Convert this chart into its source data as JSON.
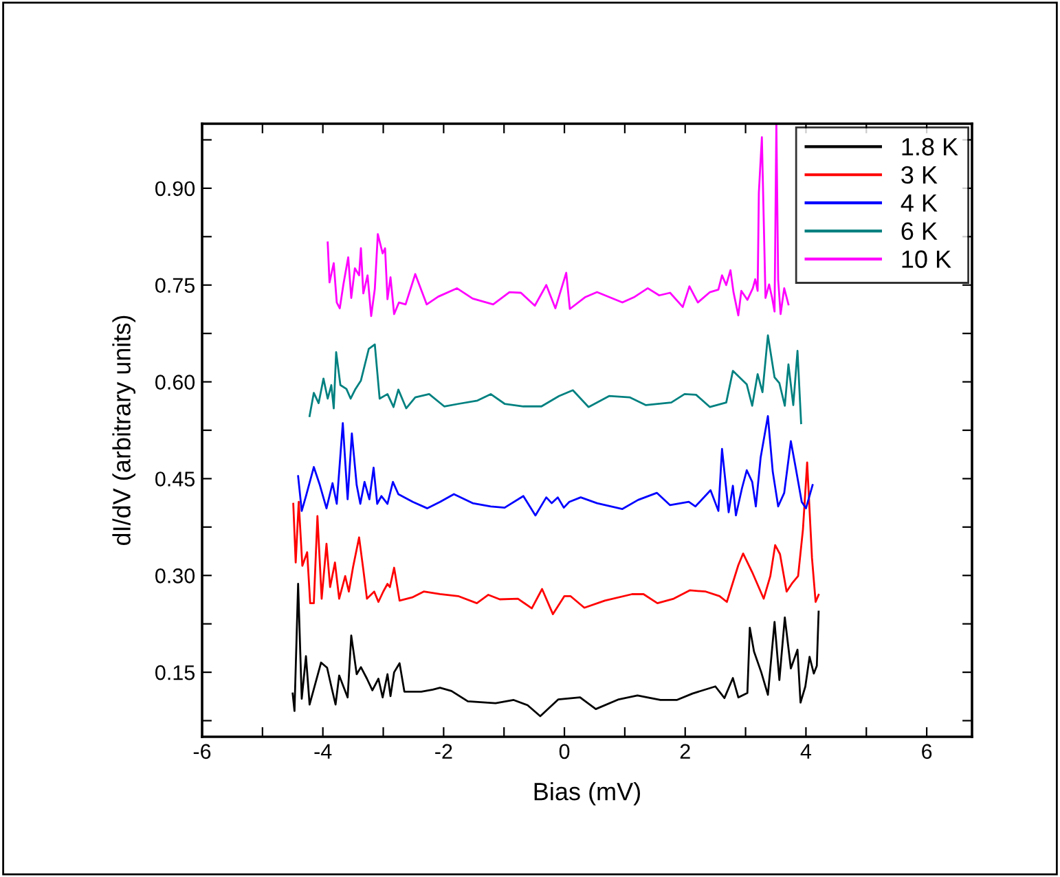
{
  "chart_data": {
    "type": "line",
    "xlabel": "Bias (mV)",
    "ylabel": "dI/dV (arbitrary units)",
    "xlim": [
      -6,
      6.75
    ],
    "ylim": [
      0.05,
      1.0
    ],
    "xticks": [
      -6,
      {
        "value": -5,
        "label": null
      },
      -4,
      {
        "value": -3,
        "label": null
      },
      -2,
      {
        "value": -1,
        "label": null
      },
      0,
      {
        "value": 1,
        "label": null
      },
      2,
      {
        "value": 3,
        "label": null
      },
      4,
      {
        "value": 5,
        "label": null
      },
      6
    ],
    "yticks": [
      {
        "value": 0.075,
        "label": null
      },
      {
        "value": 0.15,
        "label": "0.15"
      },
      {
        "value": 0.225,
        "label": null
      },
      {
        "value": 0.3,
        "label": "0.30"
      },
      {
        "value": 0.375,
        "label": null
      },
      {
        "value": 0.45,
        "label": "0.45"
      },
      {
        "value": 0.525,
        "label": null
      },
      {
        "value": 0.6,
        "label": "0.60"
      },
      {
        "value": 0.675,
        "label": null
      },
      {
        "value": 0.75,
        "label": "0.75"
      },
      {
        "value": 0.825,
        "label": null
      },
      {
        "value": 0.9,
        "label": "0.90"
      },
      {
        "value": 0.975,
        "label": null
      }
    ],
    "grid": false,
    "legend": "top right",
    "marker": "none",
    "line_style": "solid",
    "series": [
      {
        "name": "1.8 K",
        "color": "#000000",
        "x": [
          -4.5,
          -4.47,
          -4.41,
          -4.35,
          -4.28,
          -4.22,
          -4.15,
          -4.03,
          -3.93,
          -3.86,
          -3.79,
          -3.73,
          -3.59,
          -3.53,
          -3.44,
          -3.37,
          -3.27,
          -3.18,
          -3.08,
          -3.01,
          -2.93,
          -2.88,
          -2.82,
          -2.73,
          -2.65,
          -2.37,
          -2.18,
          -2.06,
          -1.87,
          -1.6,
          -1.14,
          -0.84,
          -0.61,
          -0.4,
          -0.1,
          0.26,
          0.52,
          0.9,
          1.21,
          1.59,
          1.86,
          2.12,
          2.5,
          2.65,
          2.79,
          2.88,
          3.03,
          3.07,
          3.14,
          3.26,
          3.37,
          3.48,
          3.56,
          3.65,
          3.75,
          3.86,
          3.91,
          3.99,
          4.06,
          4.13,
          4.18,
          4.21
        ],
        "values": [
          0.117,
          0.09,
          0.287,
          0.109,
          0.175,
          0.1,
          0.124,
          0.165,
          0.157,
          0.128,
          0.1,
          0.145,
          0.111,
          0.207,
          0.147,
          0.158,
          0.14,
          0.122,
          0.14,
          0.111,
          0.147,
          0.113,
          0.15,
          0.164,
          0.12,
          0.12,
          0.123,
          0.126,
          0.121,
          0.105,
          0.102,
          0.107,
          0.099,
          0.082,
          0.108,
          0.111,
          0.093,
          0.108,
          0.114,
          0.107,
          0.107,
          0.117,
          0.128,
          0.11,
          0.141,
          0.111,
          0.118,
          0.219,
          0.182,
          0.15,
          0.115,
          0.228,
          0.138,
          0.235,
          0.156,
          0.185,
          0.103,
          0.128,
          0.174,
          0.148,
          0.16,
          0.244
        ]
      },
      {
        "name": "3 K",
        "color": "#ff0000",
        "x": [
          -4.49,
          -4.45,
          -4.4,
          -4.34,
          -4.26,
          -4.21,
          -4.15,
          -4.09,
          -4.02,
          -3.94,
          -3.88,
          -3.8,
          -3.73,
          -3.63,
          -3.57,
          -3.5,
          -3.4,
          -3.33,
          -3.27,
          -3.15,
          -3.08,
          -3.0,
          -2.93,
          -2.89,
          -2.82,
          -2.73,
          -2.52,
          -2.33,
          -2.06,
          -1.76,
          -1.45,
          -1.26,
          -1.07,
          -0.77,
          -0.54,
          -0.37,
          -0.19,
          0.0,
          0.1,
          0.33,
          0.67,
          1.12,
          1.31,
          1.54,
          1.81,
          2.08,
          2.34,
          2.57,
          2.69,
          2.88,
          2.96,
          3.11,
          3.3,
          3.41,
          3.49,
          3.57,
          3.68,
          3.78,
          3.87,
          3.95,
          4.02,
          4.1,
          4.16,
          4.21
        ],
        "values": [
          0.411,
          0.32,
          0.414,
          0.315,
          0.336,
          0.257,
          0.257,
          0.392,
          0.264,
          0.349,
          0.282,
          0.32,
          0.264,
          0.299,
          0.275,
          0.313,
          0.359,
          0.309,
          0.264,
          0.275,
          0.259,
          0.275,
          0.287,
          0.282,
          0.312,
          0.261,
          0.266,
          0.275,
          0.271,
          0.268,
          0.257,
          0.27,
          0.263,
          0.264,
          0.249,
          0.279,
          0.24,
          0.268,
          0.268,
          0.25,
          0.261,
          0.271,
          0.271,
          0.257,
          0.264,
          0.277,
          0.275,
          0.268,
          0.259,
          0.316,
          0.334,
          0.305,
          0.264,
          0.299,
          0.347,
          0.333,
          0.275,
          0.289,
          0.299,
          0.371,
          0.475,
          0.327,
          0.259,
          0.27
        ]
      },
      {
        "name": "4 K",
        "color": "#0000ff",
        "x": [
          -4.41,
          -4.35,
          -4.28,
          -4.15,
          -4.05,
          -3.94,
          -3.84,
          -3.77,
          -3.67,
          -3.59,
          -3.52,
          -3.44,
          -3.38,
          -3.31,
          -3.23,
          -3.16,
          -3.1,
          -3.03,
          -2.93,
          -2.84,
          -2.75,
          -2.51,
          -2.27,
          -2.06,
          -1.83,
          -1.52,
          -1.22,
          -0.99,
          -0.68,
          -0.48,
          -0.3,
          -0.21,
          -0.11,
          -0.01,
          0.08,
          0.27,
          0.54,
          0.96,
          1.22,
          1.53,
          1.75,
          2.06,
          2.17,
          2.33,
          2.42,
          2.55,
          2.61,
          2.72,
          2.79,
          2.84,
          2.94,
          3.02,
          3.11,
          3.17,
          3.25,
          3.37,
          3.45,
          3.54,
          3.64,
          3.75,
          3.83,
          3.93,
          4.0,
          4.11
        ],
        "values": [
          0.454,
          0.4,
          0.423,
          0.468,
          0.44,
          0.404,
          0.443,
          0.411,
          0.536,
          0.418,
          0.52,
          0.44,
          0.411,
          0.445,
          0.418,
          0.467,
          0.411,
          0.423,
          0.411,
          0.445,
          0.426,
          0.414,
          0.404,
          0.414,
          0.426,
          0.412,
          0.407,
          0.405,
          0.423,
          0.393,
          0.421,
          0.412,
          0.421,
          0.405,
          0.414,
          0.421,
          0.412,
          0.403,
          0.417,
          0.428,
          0.409,
          0.414,
          0.407,
          0.423,
          0.432,
          0.4,
          0.496,
          0.398,
          0.439,
          0.393,
          0.435,
          0.463,
          0.445,
          0.407,
          0.483,
          0.547,
          0.461,
          0.407,
          0.428,
          0.508,
          0.467,
          0.414,
          0.404,
          0.44
        ]
      },
      {
        "name": "6 K",
        "color": "#008080",
        "x": [
          -4.22,
          -4.15,
          -4.07,
          -3.99,
          -3.92,
          -3.86,
          -3.82,
          -3.78,
          -3.71,
          -3.61,
          -3.54,
          -3.46,
          -3.37,
          -3.24,
          -3.14,
          -3.06,
          -2.93,
          -2.83,
          -2.75,
          -2.62,
          -2.47,
          -2.24,
          -1.99,
          -1.75,
          -1.44,
          -1.22,
          -0.99,
          -0.68,
          -0.38,
          -0.09,
          0.14,
          0.4,
          0.74,
          1.08,
          1.35,
          1.77,
          1.99,
          2.18,
          2.41,
          2.68,
          2.79,
          2.9,
          3.02,
          3.11,
          3.2,
          3.28,
          3.37,
          3.48,
          3.56,
          3.65,
          3.71,
          3.79,
          3.86,
          3.92
        ],
        "values": [
          0.547,
          0.583,
          0.567,
          0.605,
          0.574,
          0.595,
          0.559,
          0.646,
          0.595,
          0.589,
          0.574,
          0.589,
          0.602,
          0.651,
          0.658,
          0.574,
          0.581,
          0.561,
          0.588,
          0.559,
          0.576,
          0.581,
          0.562,
          0.566,
          0.571,
          0.581,
          0.566,
          0.562,
          0.562,
          0.578,
          0.587,
          0.561,
          0.578,
          0.576,
          0.564,
          0.568,
          0.581,
          0.58,
          0.561,
          0.568,
          0.617,
          0.607,
          0.596,
          0.563,
          0.612,
          0.584,
          0.672,
          0.607,
          0.598,
          0.563,
          0.627,
          0.564,
          0.648,
          0.536
        ]
      },
      {
        "name": "10 K",
        "color": "#ff00ff",
        "x": [
          -3.92,
          -3.89,
          -3.82,
          -3.77,
          -3.72,
          -3.66,
          -3.58,
          -3.53,
          -3.47,
          -3.4,
          -3.37,
          -3.33,
          -3.26,
          -3.2,
          -3.14,
          -3.09,
          -3.01,
          -2.97,
          -2.93,
          -2.88,
          -2.82,
          -2.74,
          -2.63,
          -2.47,
          -2.28,
          -2.09,
          -1.78,
          -1.52,
          -1.18,
          -0.91,
          -0.72,
          -0.49,
          -0.3,
          -0.15,
          0.03,
          0.09,
          0.34,
          0.54,
          0.96,
          1.15,
          1.38,
          1.57,
          1.75,
          1.96,
          2.07,
          2.21,
          2.41,
          2.55,
          2.61,
          2.68,
          2.75,
          2.8,
          2.88,
          2.93,
          3.03,
          3.12,
          3.16,
          3.2,
          3.22,
          3.27,
          3.33,
          3.39,
          3.44,
          3.48,
          3.51,
          3.54,
          3.58,
          3.64,
          3.71
        ],
        "values": [
          0.816,
          0.754,
          0.784,
          0.723,
          0.714,
          0.751,
          0.793,
          0.73,
          0.776,
          0.765,
          0.807,
          0.737,
          0.765,
          0.702,
          0.744,
          0.829,
          0.799,
          0.807,
          0.728,
          0.762,
          0.705,
          0.723,
          0.72,
          0.767,
          0.72,
          0.732,
          0.745,
          0.729,
          0.72,
          0.739,
          0.738,
          0.718,
          0.75,
          0.714,
          0.769,
          0.713,
          0.731,
          0.739,
          0.723,
          0.731,
          0.745,
          0.734,
          0.738,
          0.716,
          0.748,
          0.723,
          0.739,
          0.743,
          0.765,
          0.75,
          0.773,
          0.739,
          0.703,
          0.741,
          0.727,
          0.745,
          0.759,
          0.741,
          0.893,
          0.979,
          0.73,
          0.751,
          0.73,
          0.709,
          1.0,
          0.758,
          0.705,
          0.745,
          0.72
        ]
      }
    ]
  }
}
